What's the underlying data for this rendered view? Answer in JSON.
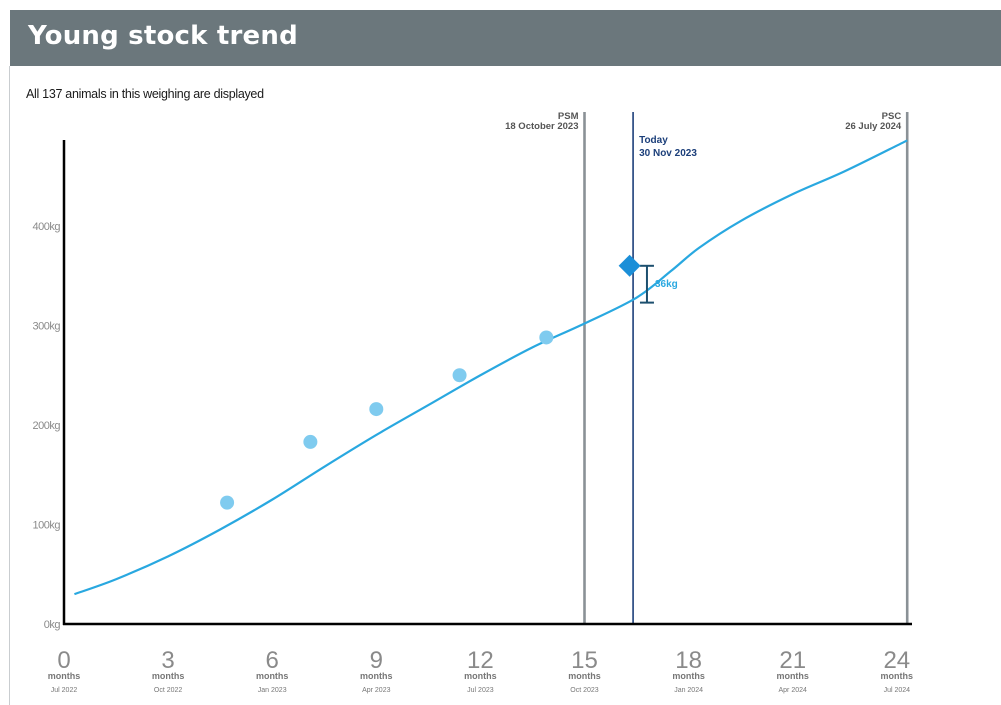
{
  "header": {
    "title": "Young stock trend"
  },
  "subtitle": "All 137 animals in this weighing are displayed",
  "chart_data": {
    "type": "line",
    "title": "Young stock trend",
    "xlim": [
      0,
      24
    ],
    "ylim": [
      0,
      500
    ],
    "y_ticks": [
      {
        "value": 0,
        "label": "0kg"
      },
      {
        "value": 100,
        "label": "100kg"
      },
      {
        "value": 200,
        "label": "200kg"
      },
      {
        "value": 300,
        "label": "300kg"
      },
      {
        "value": 400,
        "label": "400kg"
      }
    ],
    "x_ticks": [
      {
        "value": 0,
        "number": "0",
        "unit": "months",
        "date": "Jul 2022"
      },
      {
        "value": 3,
        "number": "3",
        "unit": "months",
        "date": "Oct 2022"
      },
      {
        "value": 6,
        "number": "6",
        "unit": "months",
        "date": "Jan 2023"
      },
      {
        "value": 9,
        "number": "9",
        "unit": "months",
        "date": "Apr 2023"
      },
      {
        "value": 12,
        "number": "12",
        "unit": "months",
        "date": "Jul 2023"
      },
      {
        "value": 15,
        "number": "15",
        "unit": "months",
        "date": "Oct 2023"
      },
      {
        "value": 18,
        "number": "18",
        "unit": "months",
        "date": "Jan 2024"
      },
      {
        "value": 21,
        "number": "21",
        "unit": "months",
        "date": "Apr 2024"
      },
      {
        "value": 24,
        "number": "24",
        "unit": "months",
        "date": "Jul 2024"
      }
    ],
    "target_curve": [
      {
        "x": 0.3,
        "y": 30
      },
      {
        "x": 1.5,
        "y": 45
      },
      {
        "x": 3,
        "y": 68
      },
      {
        "x": 4.5,
        "y": 95
      },
      {
        "x": 6,
        "y": 125
      },
      {
        "x": 7.5,
        "y": 158
      },
      {
        "x": 9,
        "y": 190
      },
      {
        "x": 10.5,
        "y": 220
      },
      {
        "x": 12,
        "y": 250
      },
      {
        "x": 13.5,
        "y": 278
      },
      {
        "x": 15,
        "y": 302
      },
      {
        "x": 16.5,
        "y": 328
      },
      {
        "x": 17.5,
        "y": 355
      },
      {
        "x": 18.3,
        "y": 378
      },
      {
        "x": 19.5,
        "y": 405
      },
      {
        "x": 21,
        "y": 432
      },
      {
        "x": 22.5,
        "y": 455
      },
      {
        "x": 24.3,
        "y": 486
      }
    ],
    "weighings": [
      {
        "x": 4.7,
        "y": 122
      },
      {
        "x": 7.1,
        "y": 183
      },
      {
        "x": 9.0,
        "y": 216
      },
      {
        "x": 11.4,
        "y": 250
      },
      {
        "x": 13.9,
        "y": 288
      }
    ],
    "current": {
      "x": 16.3,
      "y": 360
    },
    "gap": {
      "x": 16.8,
      "y_low": 323,
      "y_high": 360,
      "label": "36kg"
    },
    "markers": [
      {
        "x": 15.0,
        "lines": [
          "PSM",
          "18 October 2023"
        ],
        "align": "right",
        "color": "#8a9196",
        "textcolor": "#555555"
      },
      {
        "x": 16.4,
        "lines": [
          "Today",
          "30 Nov 2023"
        ],
        "align": "left",
        "color": "#1c3f7a",
        "textcolor": "#1c3f7a"
      },
      {
        "x": 24.3,
        "lines": [
          "PSC",
          "26 July 2024"
        ],
        "align": "right",
        "color": "#8a9196",
        "textcolor": "#555555"
      }
    ],
    "colors": {
      "curve": "#29a8e0",
      "points": "#7fcbef",
      "current": "#1b8fd8",
      "gap": "#1c4f6e",
      "axis": "#000000",
      "tick_labels": "#8a8a8a",
      "header_bg": "#6b777c"
    }
  }
}
